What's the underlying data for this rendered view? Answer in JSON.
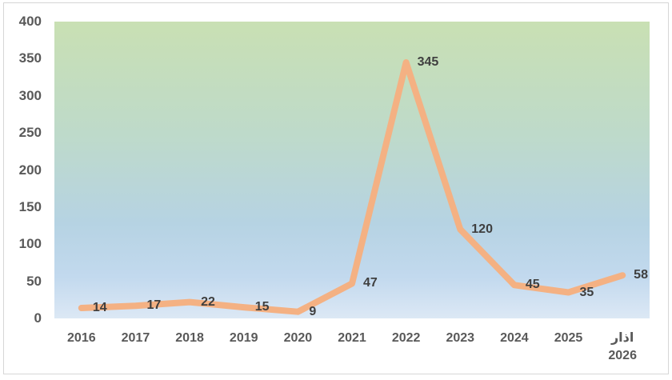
{
  "page": {
    "background_color": "#FFFFFF",
    "frame_border_color": "#D6D6D6"
  },
  "chart_data": {
    "type": "line",
    "title": "",
    "xlabel": "",
    "ylabel": "",
    "categories": [
      "2016",
      "2017",
      "2018",
      "2019",
      "2020",
      "2021",
      "2022",
      "2023",
      "2024",
      "2025",
      "اذار\n2026"
    ],
    "values": [
      14,
      17,
      22,
      15,
      9,
      47,
      345,
      120,
      45,
      35,
      58
    ],
    "data_labels_visible": true,
    "ylim": [
      0,
      400
    ],
    "yticks": [
      0,
      50,
      100,
      150,
      200,
      250,
      300,
      350,
      400
    ],
    "grid": false,
    "legend": false,
    "line_color": "#F4B183",
    "line_width": 8,
    "data_label_color": "#3F3F3F",
    "axis_text_color": "#595959",
    "plot_bg_gradient": [
      "#C9E0B3",
      "#BEDACA",
      "#B6D3E3",
      "#C2D9EE",
      "#DCE8F5"
    ]
  }
}
